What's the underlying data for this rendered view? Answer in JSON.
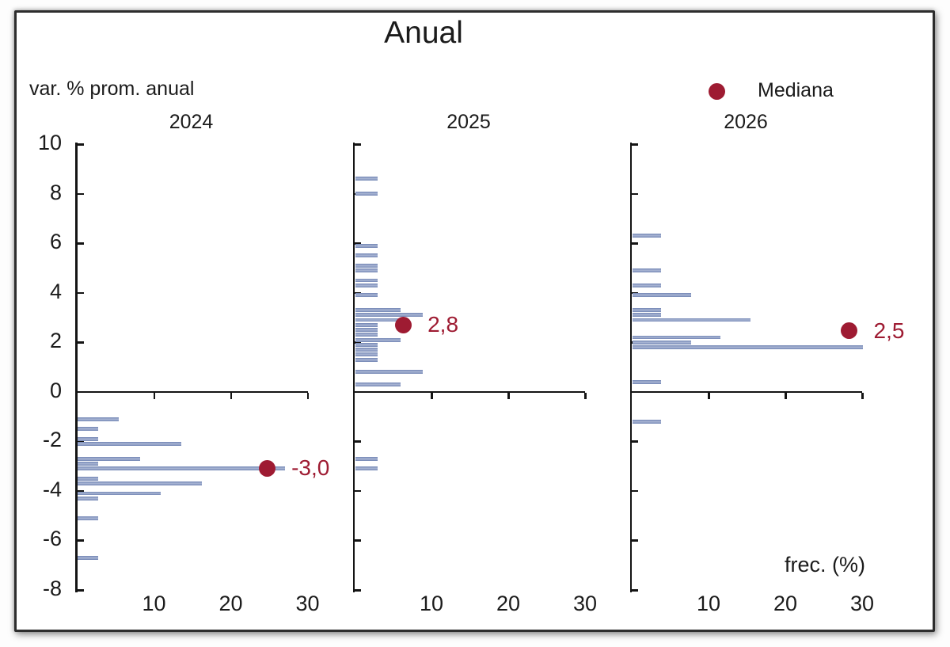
{
  "figure": {
    "title": "Anual",
    "y_axis_unit_label": "var. % prom. anual",
    "x_axis_unit_label": "frec. (%)",
    "legend": {
      "marker": "median-dot",
      "label": "Mediana"
    }
  },
  "colors": {
    "bar_fill": "#8c9ec6",
    "bar_edge": "#7285b4",
    "bar_light": "#a9b6d4",
    "median": "#9e1b32",
    "axis": "#141414",
    "text": "#1b1b1b"
  },
  "y_axis": {
    "tick_labels": [
      "10",
      "8",
      "6",
      "4",
      "2",
      "0",
      "-2",
      "-4",
      "-6",
      "-8"
    ],
    "range": [
      -8,
      10
    ]
  },
  "x_axis": {
    "tick_labels": [
      "10",
      "20",
      "30"
    ],
    "range": [
      0,
      30
    ]
  },
  "chart_data": [
    {
      "type": "bar",
      "orientation": "horizontal",
      "panel_title": "2024",
      "xlabel": "frec. (%)",
      "ylabel": "var. % prom. anual",
      "xlim": [
        0,
        30
      ],
      "ylim": [
        -8,
        10
      ],
      "bin_width": 0.2,
      "bars": [
        {
          "value": -1.1,
          "freq": 5.4
        },
        {
          "value": -1.5,
          "freq": 2.7
        },
        {
          "value": -1.9,
          "freq": 2.7
        },
        {
          "value": -2.1,
          "freq": 13.5
        },
        {
          "value": -2.7,
          "freq": 8.1
        },
        {
          "value": -2.9,
          "freq": 2.7
        },
        {
          "value": -3.1,
          "freq": 27.0
        },
        {
          "value": -3.5,
          "freq": 2.7
        },
        {
          "value": -3.7,
          "freq": 16.2
        },
        {
          "value": -4.1,
          "freq": 10.8
        },
        {
          "value": -4.3,
          "freq": 2.7
        },
        {
          "value": -5.1,
          "freq": 2.7
        },
        {
          "value": -6.7,
          "freq": 2.7
        }
      ],
      "median": {
        "label": "-3,0",
        "value": -3.0,
        "dot_value": -3.08,
        "dot_freq": 24.7
      }
    },
    {
      "type": "bar",
      "orientation": "horizontal",
      "panel_title": "2025",
      "xlabel": "frec. (%)",
      "ylabel": "var. % prom. anual",
      "xlim": [
        0,
        30
      ],
      "ylim": [
        -8,
        10
      ],
      "bin_width": 0.2,
      "bars": [
        {
          "value": 8.6,
          "freq": 2.9
        },
        {
          "value": 8.0,
          "freq": 2.9
        },
        {
          "value": 5.9,
          "freq": 2.9
        },
        {
          "value": 5.5,
          "freq": 2.9
        },
        {
          "value": 5.1,
          "freq": 2.9
        },
        {
          "value": 4.9,
          "freq": 2.9
        },
        {
          "value": 4.5,
          "freq": 2.9
        },
        {
          "value": 4.3,
          "freq": 2.9
        },
        {
          "value": 3.9,
          "freq": 2.9
        },
        {
          "value": 3.3,
          "freq": 5.9
        },
        {
          "value": 3.1,
          "freq": 8.8
        },
        {
          "value": 2.9,
          "freq": 5.9
        },
        {
          "value": 2.7,
          "freq": 2.9
        },
        {
          "value": 2.5,
          "freq": 2.9
        },
        {
          "value": 2.3,
          "freq": 2.9
        },
        {
          "value": 2.1,
          "freq": 5.9
        },
        {
          "value": 1.9,
          "freq": 2.9
        },
        {
          "value": 1.7,
          "freq": 2.9
        },
        {
          "value": 1.5,
          "freq": 2.9
        },
        {
          "value": 1.3,
          "freq": 2.9
        },
        {
          "value": 0.8,
          "freq": 8.8
        },
        {
          "value": 0.3,
          "freq": 5.9
        },
        {
          "value": -2.7,
          "freq": 2.9
        },
        {
          "value": -3.1,
          "freq": 2.9
        }
      ],
      "median": {
        "label": "2,8",
        "value": 2.8,
        "dot_value": 2.71,
        "dot_freq": 6.3
      }
    },
    {
      "type": "bar",
      "orientation": "horizontal",
      "panel_title": "2026",
      "xlabel": "frec. (%)",
      "ylabel": "var. % prom. anual",
      "xlim": [
        0,
        30
      ],
      "ylim": [
        -8,
        10
      ],
      "bin_width": 0.2,
      "bars": [
        {
          "value": 6.3,
          "freq": 3.8
        },
        {
          "value": 4.9,
          "freq": 3.8
        },
        {
          "value": 4.3,
          "freq": 3.8
        },
        {
          "value": 3.9,
          "freq": 7.7
        },
        {
          "value": 3.3,
          "freq": 3.8
        },
        {
          "value": 3.1,
          "freq": 3.8
        },
        {
          "value": 2.9,
          "freq": 15.4
        },
        {
          "value": 2.2,
          "freq": 11.5
        },
        {
          "value": 2.0,
          "freq": 7.7
        },
        {
          "value": 1.8,
          "freq": 30.0
        },
        {
          "value": 0.4,
          "freq": 3.8
        },
        {
          "value": -1.2,
          "freq": 3.8
        }
      ],
      "median": {
        "label": "2,5",
        "value": 2.5,
        "dot_value": 2.47,
        "dot_freq": 28.3
      }
    }
  ]
}
